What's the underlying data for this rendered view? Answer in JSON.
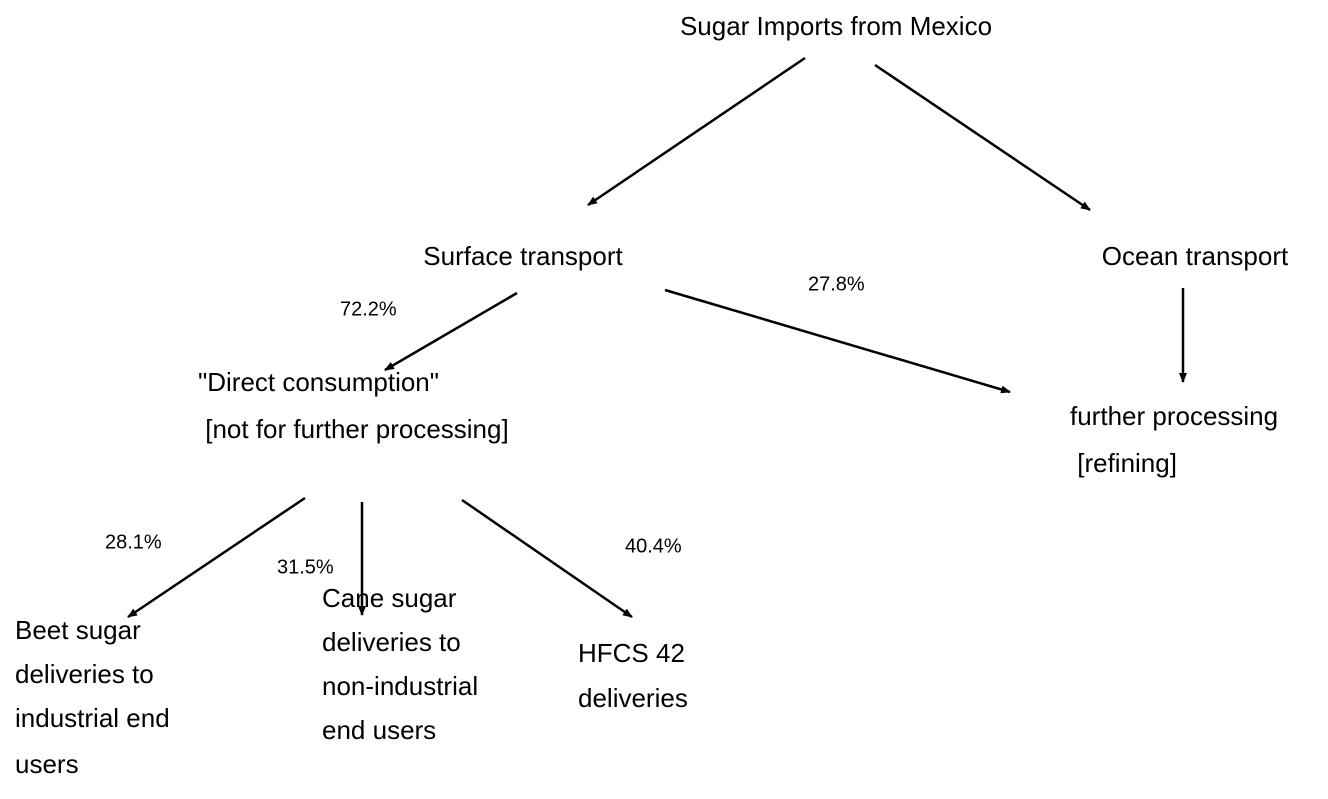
{
  "title": "Sugar Imports from Mexico",
  "nodes": [
    {
      "lines": [
        "Surface transport"
      ]
    },
    {
      "lines": [
        "Ocean transport"
      ]
    },
    {
      "lines": [
        "\"Direct consumption\"",
        " [not for further processing]"
      ]
    },
    {
      "lines": [
        "further processing",
        " [refining]"
      ]
    },
    {
      "lines": [
        "Beet sugar",
        "deliveries to",
        "industrial end",
        "users"
      ]
    },
    {
      "lines": [
        "Cane sugar",
        "deliveries to",
        "non-industrial",
        "end users"
      ]
    },
    {
      "lines": [
        "HFCS 42",
        "deliveries"
      ]
    }
  ],
  "edge_labels": [
    "72.2%",
    "27.8%",
    "28.1%",
    "31.5%",
    "40.4%"
  ]
}
